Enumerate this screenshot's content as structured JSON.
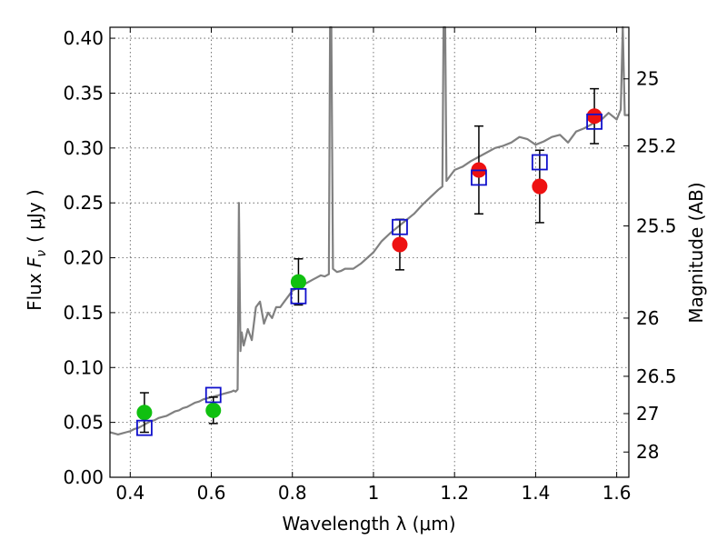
{
  "chart_data": {
    "type": "scatter",
    "xlabel": "Wavelength  λ (μm)",
    "ylabel_left_prefix": "Flux",
    "ylabel_left_symbol": "F",
    "ylabel_left_symbol_sub": "ν",
    "ylabel_left_units": "( μJy )",
    "ylabel_right": "Magnitude (AB)",
    "xlim": [
      0.35,
      1.63
    ],
    "ylim": [
      0.0,
      0.41
    ],
    "grid": true,
    "x_ticks": [
      {
        "value": 0.4,
        "label": "0.4"
      },
      {
        "value": 0.6,
        "label": "0.6"
      },
      {
        "value": 0.8,
        "label": "0.8"
      },
      {
        "value": 1.0,
        "label": "1"
      },
      {
        "value": 1.2,
        "label": "1.2"
      },
      {
        "value": 1.4,
        "label": "1.4"
      },
      {
        "value": 1.6,
        "label": "1.6"
      }
    ],
    "y_ticks": [
      {
        "value": 0.0,
        "label": "0.00"
      },
      {
        "value": 0.05,
        "label": "0.05"
      },
      {
        "value": 0.1,
        "label": "0.10"
      },
      {
        "value": 0.15,
        "label": "0.15"
      },
      {
        "value": 0.2,
        "label": "0.20"
      },
      {
        "value": 0.25,
        "label": "0.25"
      },
      {
        "value": 0.3,
        "label": "0.30"
      },
      {
        "value": 0.35,
        "label": "0.35"
      },
      {
        "value": 0.4,
        "label": "0.40"
      }
    ],
    "right_ticks": [
      {
        "flux": 0.363,
        "label": "25"
      },
      {
        "flux": 0.302,
        "label": "25.2"
      },
      {
        "flux": 0.229,
        "label": "25.5"
      },
      {
        "flux": 0.145,
        "label": "26"
      },
      {
        "flux": 0.092,
        "label": "26.5"
      },
      {
        "flux": 0.058,
        "label": "27"
      },
      {
        "flux": 0.023,
        "label": "28"
      }
    ],
    "colors": {
      "spectrum": "#808080",
      "green": "#10c010",
      "red": "#ee1111",
      "model_square": "#1010cc",
      "errorbar": "#000000",
      "grid": "#555555"
    },
    "spectrum": [
      [
        0.35,
        0.041
      ],
      [
        0.36,
        0.04
      ],
      [
        0.37,
        0.039
      ],
      [
        0.38,
        0.04
      ],
      [
        0.39,
        0.041
      ],
      [
        0.4,
        0.042
      ],
      [
        0.41,
        0.044
      ],
      [
        0.42,
        0.045
      ],
      [
        0.43,
        0.047
      ],
      [
        0.44,
        0.049
      ],
      [
        0.45,
        0.051
      ],
      [
        0.46,
        0.052
      ],
      [
        0.47,
        0.054
      ],
      [
        0.48,
        0.055
      ],
      [
        0.49,
        0.056
      ],
      [
        0.5,
        0.058
      ],
      [
        0.51,
        0.06
      ],
      [
        0.52,
        0.061
      ],
      [
        0.53,
        0.063
      ],
      [
        0.54,
        0.064
      ],
      [
        0.55,
        0.066
      ],
      [
        0.56,
        0.068
      ],
      [
        0.57,
        0.069
      ],
      [
        0.58,
        0.071
      ],
      [
        0.59,
        0.072
      ],
      [
        0.6,
        0.073
      ],
      [
        0.61,
        0.074
      ],
      [
        0.62,
        0.075
      ],
      [
        0.63,
        0.076
      ],
      [
        0.64,
        0.077
      ],
      [
        0.65,
        0.078
      ],
      [
        0.655,
        0.079
      ],
      [
        0.66,
        0.078
      ],
      [
        0.665,
        0.08
      ],
      [
        0.668,
        0.25
      ],
      [
        0.67,
        0.175
      ],
      [
        0.672,
        0.115
      ],
      [
        0.675,
        0.132
      ],
      [
        0.68,
        0.12
      ],
      [
        0.69,
        0.135
      ],
      [
        0.7,
        0.125
      ],
      [
        0.71,
        0.155
      ],
      [
        0.72,
        0.16
      ],
      [
        0.73,
        0.14
      ],
      [
        0.74,
        0.15
      ],
      [
        0.75,
        0.145
      ],
      [
        0.76,
        0.155
      ],
      [
        0.77,
        0.155
      ],
      [
        0.78,
        0.16
      ],
      [
        0.79,
        0.165
      ],
      [
        0.8,
        0.17
      ],
      [
        0.81,
        0.172
      ],
      [
        0.82,
        0.174
      ],
      [
        0.83,
        0.176
      ],
      [
        0.84,
        0.178
      ],
      [
        0.85,
        0.18
      ],
      [
        0.86,
        0.182
      ],
      [
        0.87,
        0.184
      ],
      [
        0.88,
        0.183
      ],
      [
        0.89,
        0.185
      ],
      [
        0.893,
        0.41
      ],
      [
        0.896,
        0.41
      ],
      [
        0.9,
        0.19
      ],
      [
        0.91,
        0.187
      ],
      [
        0.92,
        0.188
      ],
      [
        0.93,
        0.19
      ],
      [
        0.95,
        0.19
      ],
      [
        0.97,
        0.195
      ],
      [
        1.0,
        0.205
      ],
      [
        1.02,
        0.215
      ],
      [
        1.04,
        0.222
      ],
      [
        1.06,
        0.228
      ],
      [
        1.08,
        0.234
      ],
      [
        1.1,
        0.24
      ],
      [
        1.12,
        0.248
      ],
      [
        1.14,
        0.255
      ],
      [
        1.16,
        0.262
      ],
      [
        1.17,
        0.265
      ],
      [
        1.173,
        0.41
      ],
      [
        1.177,
        0.41
      ],
      [
        1.18,
        0.27
      ],
      [
        1.19,
        0.275
      ],
      [
        1.2,
        0.28
      ],
      [
        1.22,
        0.283
      ],
      [
        1.24,
        0.288
      ],
      [
        1.26,
        0.292
      ],
      [
        1.28,
        0.296
      ],
      [
        1.3,
        0.3
      ],
      [
        1.32,
        0.302
      ],
      [
        1.34,
        0.305
      ],
      [
        1.36,
        0.31
      ],
      [
        1.38,
        0.308
      ],
      [
        1.4,
        0.303
      ],
      [
        1.42,
        0.306
      ],
      [
        1.44,
        0.31
      ],
      [
        1.46,
        0.312
      ],
      [
        1.48,
        0.305
      ],
      [
        1.5,
        0.315
      ],
      [
        1.52,
        0.318
      ],
      [
        1.54,
        0.322
      ],
      [
        1.56,
        0.325
      ],
      [
        1.58,
        0.332
      ],
      [
        1.6,
        0.326
      ],
      [
        1.61,
        0.335
      ],
      [
        1.615,
        0.41
      ],
      [
        1.62,
        0.33
      ],
      [
        1.63,
        0.33
      ]
    ],
    "series": [
      {
        "marker": "circle",
        "color_key": "green",
        "points": [
          {
            "x": 0.435,
            "y": 0.059,
            "yerr": 0.018
          },
          {
            "x": 0.605,
            "y": 0.061,
            "yerr": 0.012
          },
          {
            "x": 0.815,
            "y": 0.178,
            "yerr": 0.021
          }
        ]
      },
      {
        "marker": "circle",
        "color_key": "red",
        "points": [
          {
            "x": 1.065,
            "y": 0.212,
            "yerr": 0.023
          },
          {
            "x": 1.26,
            "y": 0.28,
            "yerr": 0.04
          },
          {
            "x": 1.41,
            "y": 0.265,
            "yerr": 0.033
          },
          {
            "x": 1.545,
            "y": 0.329,
            "yerr": 0.025
          }
        ]
      },
      {
        "marker": "square",
        "color_key": "model_square",
        "points": [
          {
            "x": 0.435,
            "y": 0.045
          },
          {
            "x": 0.605,
            "y": 0.075
          },
          {
            "x": 0.815,
            "y": 0.165
          },
          {
            "x": 1.065,
            "y": 0.228
          },
          {
            "x": 1.26,
            "y": 0.273
          },
          {
            "x": 1.41,
            "y": 0.287
          },
          {
            "x": 1.545,
            "y": 0.324
          }
        ]
      }
    ]
  }
}
